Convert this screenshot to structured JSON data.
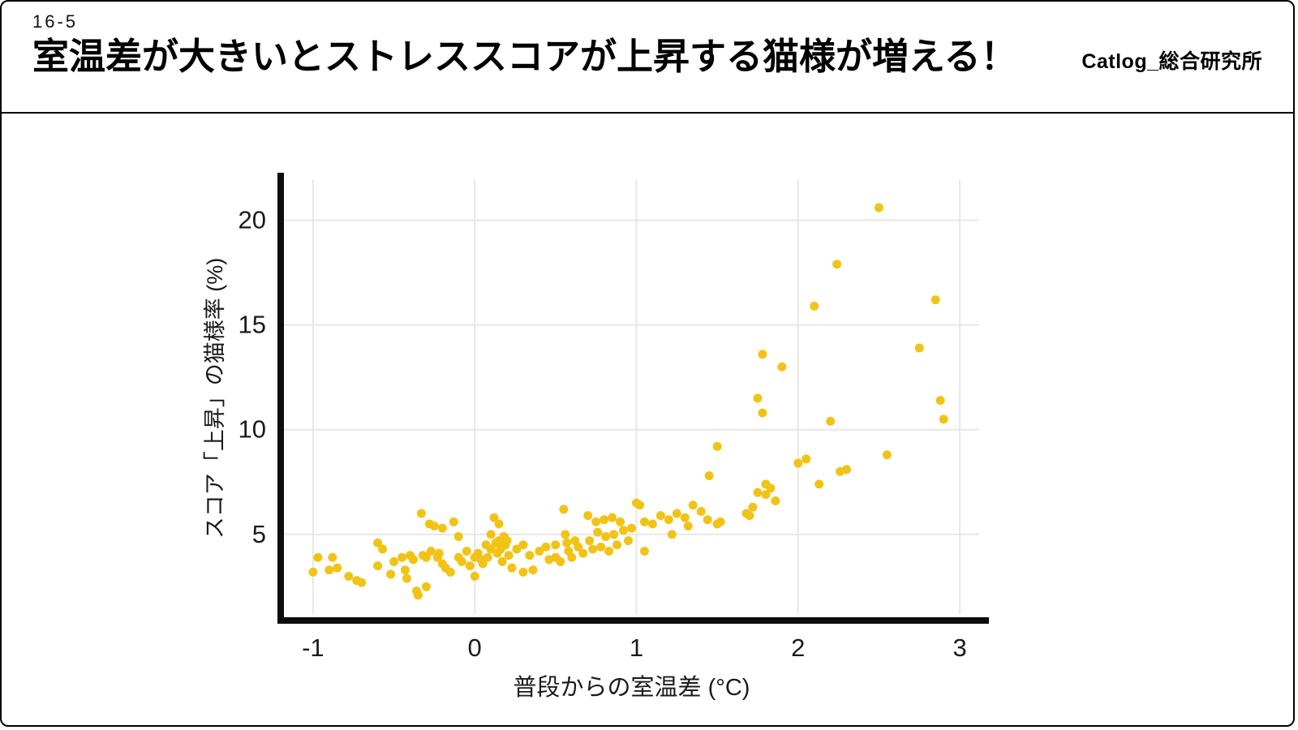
{
  "header": {
    "tag": "16-5",
    "title": "室温差が大きいとストレススコアが上昇する猫様が増える！",
    "logo": "Catlog_総合研究所"
  },
  "chart_data": {
    "type": "scatter",
    "title": "",
    "xlabel": "普段からの室温差 (°C)",
    "ylabel": "スコア「上昇」の猫様率 (%)",
    "x_ticks": [
      -1,
      0,
      1,
      2,
      3
    ],
    "y_ticks": [
      5,
      10,
      15,
      20
    ],
    "xlim": [
      -1.18,
      3.12
    ],
    "ylim": [
      1.2,
      21.8
    ],
    "grid": true,
    "legend": "none",
    "point_color": "#F2C317",
    "grid_color": "#E7E7E7",
    "axis_color": "#0d0d0d",
    "label_color": "#1a1a1a",
    "points": [
      [
        -1.0,
        3.2
      ],
      [
        -0.97,
        3.9
      ],
      [
        -0.9,
        3.3
      ],
      [
        -0.88,
        3.9
      ],
      [
        -0.85,
        3.4
      ],
      [
        -0.78,
        3.0
      ],
      [
        -0.73,
        2.8
      ],
      [
        -0.7,
        2.7
      ],
      [
        -0.6,
        3.5
      ],
      [
        -0.6,
        4.6
      ],
      [
        -0.57,
        4.3
      ],
      [
        -0.52,
        3.1
      ],
      [
        -0.5,
        3.7
      ],
      [
        -0.45,
        3.9
      ],
      [
        -0.43,
        3.3
      ],
      [
        -0.42,
        2.9
      ],
      [
        -0.4,
        4.0
      ],
      [
        -0.38,
        3.8
      ],
      [
        -0.36,
        2.3
      ],
      [
        -0.35,
        2.1
      ],
      [
        -0.33,
        6.0
      ],
      [
        -0.32,
        4.0
      ],
      [
        -0.3,
        3.9
      ],
      [
        -0.3,
        2.5
      ],
      [
        -0.28,
        5.5
      ],
      [
        -0.27,
        4.2
      ],
      [
        -0.25,
        5.4
      ],
      [
        -0.23,
        3.9
      ],
      [
        -0.22,
        4.1
      ],
      [
        -0.2,
        5.3
      ],
      [
        -0.2,
        3.6
      ],
      [
        -0.18,
        3.4
      ],
      [
        -0.15,
        3.2
      ],
      [
        -0.13,
        5.6
      ],
      [
        -0.1,
        4.9
      ],
      [
        -0.1,
        3.9
      ],
      [
        -0.08,
        3.7
      ],
      [
        -0.05,
        4.2
      ],
      [
        -0.03,
        3.5
      ],
      [
        0.0,
        3.9
      ],
      [
        0.0,
        3.0
      ],
      [
        0.02,
        4.1
      ],
      [
        0.04,
        3.8
      ],
      [
        0.05,
        3.6
      ],
      [
        0.07,
        4.5
      ],
      [
        0.08,
        3.9
      ],
      [
        0.1,
        5.0
      ],
      [
        0.1,
        4.3
      ],
      [
        0.12,
        5.8
      ],
      [
        0.13,
        4.6
      ],
      [
        0.14,
        4.1
      ],
      [
        0.15,
        5.5
      ],
      [
        0.15,
        4.7
      ],
      [
        0.16,
        4.3
      ],
      [
        0.17,
        3.7
      ],
      [
        0.18,
        4.9
      ],
      [
        0.19,
        4.5
      ],
      [
        0.2,
        4.7
      ],
      [
        0.21,
        4.0
      ],
      [
        0.23,
        3.4
      ],
      [
        0.26,
        4.3
      ],
      [
        0.3,
        4.5
      ],
      [
        0.3,
        3.2
      ],
      [
        0.34,
        4.0
      ],
      [
        0.36,
        3.3
      ],
      [
        0.4,
        4.2
      ],
      [
        0.44,
        4.4
      ],
      [
        0.46,
        3.8
      ],
      [
        0.5,
        4.5
      ],
      [
        0.5,
        3.9
      ],
      [
        0.53,
        3.7
      ],
      [
        0.55,
        6.2
      ],
      [
        0.56,
        5.0
      ],
      [
        0.57,
        4.6
      ],
      [
        0.58,
        4.2
      ],
      [
        0.6,
        3.9
      ],
      [
        0.62,
        4.7
      ],
      [
        0.64,
        4.4
      ],
      [
        0.67,
        4.1
      ],
      [
        0.7,
        5.9
      ],
      [
        0.71,
        4.7
      ],
      [
        0.73,
        4.3
      ],
      [
        0.75,
        5.6
      ],
      [
        0.76,
        5.1
      ],
      [
        0.78,
        4.4
      ],
      [
        0.8,
        5.7
      ],
      [
        0.81,
        4.9
      ],
      [
        0.83,
        4.2
      ],
      [
        0.85,
        5.8
      ],
      [
        0.86,
        5.0
      ],
      [
        0.88,
        4.5
      ],
      [
        0.9,
        5.6
      ],
      [
        0.92,
        5.2
      ],
      [
        0.95,
        4.7
      ],
      [
        0.97,
        5.3
      ],
      [
        1.0,
        6.5
      ],
      [
        1.02,
        6.4
      ],
      [
        1.05,
        5.6
      ],
      [
        1.05,
        4.2
      ],
      [
        1.1,
        5.5
      ],
      [
        1.15,
        5.9
      ],
      [
        1.2,
        5.7
      ],
      [
        1.22,
        5.0
      ],
      [
        1.25,
        6.0
      ],
      [
        1.3,
        5.8
      ],
      [
        1.32,
        5.4
      ],
      [
        1.35,
        6.4
      ],
      [
        1.4,
        6.1
      ],
      [
        1.44,
        5.7
      ],
      [
        1.45,
        7.8
      ],
      [
        1.5,
        9.2
      ],
      [
        1.5,
        5.5
      ],
      [
        1.52,
        5.6
      ],
      [
        1.68,
        6.0
      ],
      [
        1.7,
        5.9
      ],
      [
        1.72,
        6.3
      ],
      [
        1.75,
        7.0
      ],
      [
        1.75,
        11.5
      ],
      [
        1.78,
        10.8
      ],
      [
        1.78,
        13.6
      ],
      [
        1.8,
        7.4
      ],
      [
        1.8,
        6.9
      ],
      [
        1.83,
        7.2
      ],
      [
        1.86,
        6.6
      ],
      [
        1.9,
        13.0
      ],
      [
        2.0,
        8.4
      ],
      [
        2.05,
        8.6
      ],
      [
        2.1,
        15.9
      ],
      [
        2.13,
        7.4
      ],
      [
        2.2,
        10.4
      ],
      [
        2.24,
        17.9
      ],
      [
        2.26,
        8.0
      ],
      [
        2.3,
        8.1
      ],
      [
        2.5,
        20.6
      ],
      [
        2.55,
        8.8
      ],
      [
        2.75,
        13.9
      ],
      [
        2.85,
        16.2
      ],
      [
        2.88,
        11.4
      ],
      [
        2.9,
        10.5
      ]
    ]
  }
}
